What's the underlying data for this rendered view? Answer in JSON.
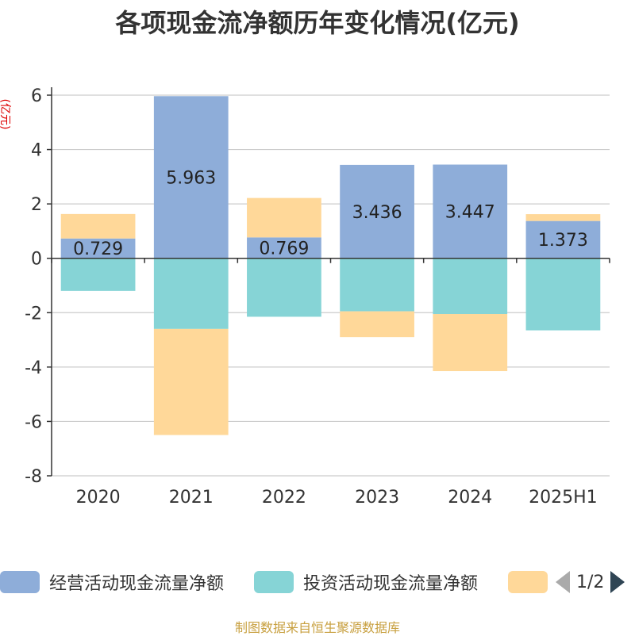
{
  "title": "各项现金流净额历年变化情况(亿元)",
  "source": "制图数据来自恒生聚源数据库",
  "pager": "1/2",
  "colors": {
    "operating": "#8eadd9",
    "investing": "#86d4d6",
    "financing": "#ffd899",
    "grid": "#cccccc",
    "axis": "#333333",
    "ylabel": "#dd0000"
  },
  "chart_data": {
    "type": "bar",
    "stacked": true,
    "categories": [
      "2020",
      "2021",
      "2022",
      "2023",
      "2024",
      "2025H1"
    ],
    "ylabel": "(亿元)",
    "ylim": [
      -8,
      6
    ],
    "yticks": [
      6,
      4,
      2,
      0,
      -2,
      -4,
      -6,
      -8
    ],
    "grid": true,
    "legend_position": "bottom",
    "series": [
      {
        "name": "经营活动现金流量净额",
        "values": [
          0.729,
          5.963,
          0.769,
          3.436,
          3.447,
          1.373
        ],
        "data_labels": [
          "0.729",
          "5.963",
          "0.769",
          "3.436",
          "3.447",
          "1.373"
        ]
      },
      {
        "name": "投资活动现金流量净额",
        "values": [
          -1.2,
          -2.6,
          -2.15,
          -1.95,
          -2.05,
          -2.65
        ]
      },
      {
        "name": "",
        "values": [
          0.9,
          -3.9,
          1.45,
          -0.95,
          -2.1,
          0.25
        ]
      }
    ]
  }
}
